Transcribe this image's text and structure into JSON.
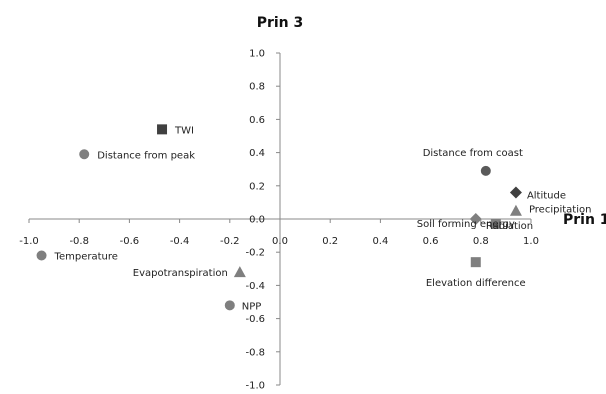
{
  "chart_data": {
    "type": "scatter",
    "xlabel": "Prin 1",
    "ylabel": "Prin 3",
    "xlim": [
      -1.0,
      1.0
    ],
    "ylim": [
      -1.0,
      1.0
    ],
    "grid": false,
    "x_ticks": [
      "-1.0",
      "-0.8",
      "-0.6",
      "-0.4",
      "-0.2",
      "0.0",
      "0.2",
      "0.4",
      "0.6",
      "0.8",
      "1.0"
    ],
    "y_ticks": [
      "1.0",
      "0.8",
      "0.6",
      "0.4",
      "0.2",
      "0.0",
      "-0.2",
      "-0.4",
      "-0.6",
      "-0.8",
      "-1.0"
    ],
    "marker_color": "#7f7f7f",
    "dark_marker_color": "#404040",
    "points": [
      {
        "label": "TWI",
        "x": -0.47,
        "y": 0.54,
        "marker": "square",
        "color": "#404040"
      },
      {
        "label": "Distance from peak",
        "x": -0.78,
        "y": 0.39,
        "marker": "circle",
        "color": "#7f7f7f"
      },
      {
        "label": "Distance from coast",
        "x": 0.82,
        "y": 0.29,
        "marker": "circle",
        "color": "#5a5a5a"
      },
      {
        "label": "Altitude",
        "x": 0.94,
        "y": 0.16,
        "marker": "diamond",
        "color": "#404040"
      },
      {
        "label": "Precipitation",
        "x": 0.94,
        "y": 0.05,
        "marker": "triangle",
        "color": "#7f7f7f"
      },
      {
        "label": "Soil forming energy",
        "x": 0.78,
        "y": 0.0,
        "marker": "diamond",
        "color": "#7f7f7f"
      },
      {
        "label": "Radiation",
        "x": 0.86,
        "y": -0.03,
        "marker": "square",
        "color": "#7f7f7f"
      },
      {
        "label": "Elevation difference",
        "x": 0.78,
        "y": -0.26,
        "marker": "square",
        "color": "#7f7f7f"
      },
      {
        "label": "Temperature",
        "x": -0.95,
        "y": -0.22,
        "marker": "circle",
        "color": "#7f7f7f"
      },
      {
        "label": "Evapotranspiration",
        "x": -0.16,
        "y": -0.32,
        "marker": "triangle",
        "color": "#7f7f7f"
      },
      {
        "label": "NPP",
        "x": -0.2,
        "y": -0.52,
        "marker": "circle",
        "color": "#7f7f7f"
      }
    ]
  }
}
